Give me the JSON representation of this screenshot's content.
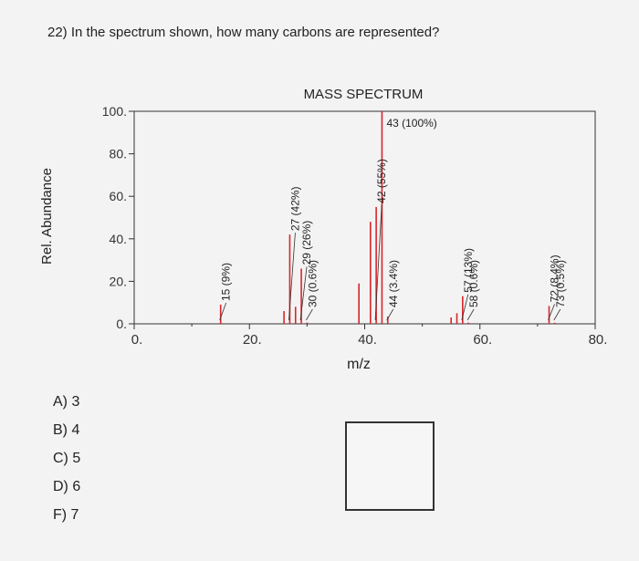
{
  "question": "22) In the spectrum shown, how many carbons are represented?",
  "options": [
    "A) 3",
    "B) 4",
    "C) 5",
    "D) 6",
    "F) 7"
  ],
  "chart_data": {
    "type": "bar",
    "title": "MASS SPECTRUM",
    "xlabel": "m/z",
    "ylabel": "Rel. Abundance",
    "xlim": [
      0,
      80
    ],
    "ylim": [
      0,
      100
    ],
    "xticks": [
      "0.",
      "20.",
      "40.",
      "60.",
      "80."
    ],
    "yticks": [
      "0.",
      "20.",
      "40.",
      "60.",
      "80.",
      "100."
    ],
    "bar_color": "#d9262c",
    "peaks": [
      {
        "x": 15,
        "y": 9
      },
      {
        "x": 26,
        "y": 6
      },
      {
        "x": 27,
        "y": 42
      },
      {
        "x": 28,
        "y": 8
      },
      {
        "x": 29,
        "y": 26
      },
      {
        "x": 30,
        "y": 0.6
      },
      {
        "x": 39,
        "y": 19
      },
      {
        "x": 41,
        "y": 48
      },
      {
        "x": 42,
        "y": 55
      },
      {
        "x": 43,
        "y": 100
      },
      {
        "x": 44,
        "y": 3.4
      },
      {
        "x": 55,
        "y": 3
      },
      {
        "x": 56,
        "y": 5
      },
      {
        "x": 57,
        "y": 13
      },
      {
        "x": 58,
        "y": 0.6
      },
      {
        "x": 72,
        "y": 8.4
      },
      {
        "x": 73,
        "y": 0.5
      }
    ],
    "annotations": [
      {
        "x": 15,
        "y": 9,
        "text": "15 (9%)",
        "rotate": true
      },
      {
        "x": 27,
        "y": 42,
        "text": "27 (42%)",
        "rotate": true
      },
      {
        "x": 29,
        "y": 26,
        "text": "29 (26%)",
        "rotate": true
      },
      {
        "x": 30,
        "y": 0.6,
        "text": "30 (0.6%)",
        "rotate": true
      },
      {
        "x": 42,
        "y": 55,
        "text": "42 (55%)",
        "rotate": true
      },
      {
        "x": 43,
        "y": 100,
        "text": "43 (100%)",
        "rotate": false
      },
      {
        "x": 44,
        "y": 3.4,
        "text": "44 (3.4%)",
        "rotate": true
      },
      {
        "x": 57,
        "y": 13,
        "text": "57 (13%)",
        "rotate": true
      },
      {
        "x": 58,
        "y": 0.6,
        "text": "58 (0.6%)",
        "rotate": true
      },
      {
        "x": 72,
        "y": 8.4,
        "text": "72 (8.4%)",
        "rotate": true
      },
      {
        "x": 73,
        "y": 0.5,
        "text": "73 (0.5%)",
        "rotate": true
      }
    ]
  }
}
